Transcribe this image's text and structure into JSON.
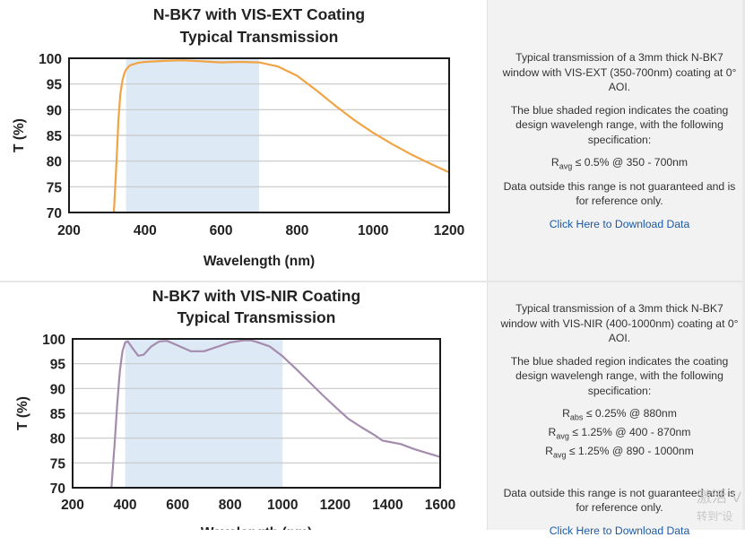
{
  "rows": [
    {
      "chart_title_line1": "N-BK7 with VIS-EXT Coating",
      "chart_title_line2": "Typical Transmission",
      "description": "Typical transmission of a 3mm thick N-BK7 window with VIS-EXT (350-700nm) coating at 0° AOI.",
      "shaded_note": "The blue shaded region indicates the coating design wavelengh range, with the following specification:",
      "specs": [
        {
          "symbol": "R",
          "sub": "avg",
          "text": "≤ 0.5% @ 350 - 700nm"
        }
      ],
      "disclaimer": "Data outside this range is not guaranteed and is for reference only.",
      "download_link": "Click Here to Download Data"
    },
    {
      "chart_title_line1": "N-BK7 with VIS-NIR Coating",
      "chart_title_line2": "Typical Transmission",
      "description": "Typical transmission of a 3mm thick N-BK7 window with VIS-NIR (400-1000nm) coating at 0° AOI.",
      "shaded_note": "The blue shaded region indicates the coating design wavelengh range, with the following specification:",
      "specs": [
        {
          "symbol": "R",
          "sub": "abs",
          "text": "≤ 0.25% @ 880nm"
        },
        {
          "symbol": "R",
          "sub": "avg",
          "text": "≤ 1.25% @ 400 - 870nm"
        },
        {
          "symbol": "R",
          "sub": "avg",
          "text": "≤ 1.25% @ 890 - 1000nm"
        }
      ],
      "disclaimer": "Data outside this range is not guaranteed and is for reference only.",
      "download_link": "Click Here to Download Data"
    }
  ],
  "watermark": {
    "line1": "激活 V",
    "line2": "转到\"设"
  },
  "chart_data": [
    {
      "type": "line",
      "title": "N-BK7 with VIS-EXT Coating\nTypical Transmission",
      "xlabel": "Wavelength (nm)",
      "ylabel": "T (%)",
      "xlim": [
        200,
        1200
      ],
      "ylim": [
        70,
        100
      ],
      "xticks": [
        200,
        400,
        600,
        800,
        1000,
        1200
      ],
      "yticks": [
        70,
        75,
        80,
        85,
        90,
        95,
        100
      ],
      "grid": "horizontal",
      "shaded_range": [
        350,
        700
      ],
      "shade_color": "#dde9f5",
      "line_color": "#f0a446",
      "series": [
        {
          "x": [
            318,
            325,
            330,
            335,
            340,
            345,
            350,
            360,
            380,
            400,
            450,
            500,
            550,
            600,
            650,
            700,
            750,
            800,
            850,
            900,
            950,
            1000,
            1050,
            1100,
            1150,
            1200
          ],
          "values": [
            70,
            80,
            88,
            93,
            95.5,
            97,
            97.8,
            98.6,
            99.1,
            99.3,
            99.5,
            99.6,
            99.4,
            99.2,
            99.3,
            99.2,
            98.4,
            96.6,
            93.8,
            90.8,
            88,
            85.5,
            83.3,
            81.3,
            79.5,
            77.8
          ]
        }
      ]
    },
    {
      "type": "line",
      "title": "N-BK7 with VIS-NIR Coating\nTypical Transmission",
      "xlabel": "Wavelength (nm)",
      "ylabel": "T (%)",
      "xlim": [
        200,
        1600
      ],
      "ylim": [
        70,
        100
      ],
      "xticks": [
        200,
        400,
        600,
        800,
        1000,
        1200,
        1400,
        1600
      ],
      "yticks": [
        70,
        75,
        80,
        85,
        90,
        95,
        100
      ],
      "grid": "horizontal",
      "shaded_range": [
        400,
        1000
      ],
      "shade_color": "#dde9f5",
      "line_color": "#a58cae",
      "series": [
        {
          "x": [
            348,
            360,
            370,
            380,
            390,
            400,
            410,
            430,
            450,
            470,
            500,
            530,
            560,
            600,
            650,
            700,
            750,
            800,
            850,
            880,
            900,
            950,
            1000,
            1050,
            1100,
            1150,
            1200,
            1250,
            1300,
            1350,
            1380,
            1400,
            1450,
            1500,
            1550,
            1600
          ],
          "values": [
            70,
            79,
            87,
            93.5,
            97.5,
            99.3,
            99.5,
            98,
            96.6,
            96.8,
            98.5,
            99.5,
            99.6,
            98.7,
            97.5,
            97.5,
            98.4,
            99.3,
            99.7,
            99.7,
            99.4,
            98.5,
            96.5,
            94,
            91.4,
            88.8,
            86.3,
            83.9,
            82.2,
            80.6,
            79.5,
            79.3,
            78.8,
            77.8,
            77,
            76.2
          ]
        }
      ]
    }
  ]
}
